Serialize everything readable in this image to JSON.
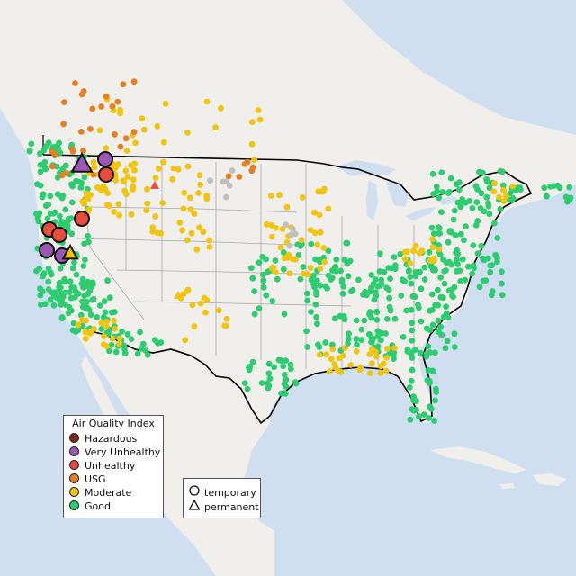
{
  "colors": {
    "water": "#cfdff0",
    "land": "#f0efec",
    "land_shade": "#e4e2dc",
    "border": "#000000",
    "state_border": "#a9a9a9",
    "hazardous": "#7e2a1b",
    "very_unhealthy": "#9b59b6",
    "unhealthy": "#e74c3c",
    "usg": "#e67e22",
    "moderate": "#f1c40f",
    "good": "#2ecc71",
    "unknown": "#bfbfbf"
  },
  "legend": {
    "title": "Air Quality Index",
    "items": [
      {
        "label": "Hazardous",
        "color": "#7e2a1b"
      },
      {
        "label": "Very Unhealthy",
        "color": "#9b59b6"
      },
      {
        "label": "Unhealthy",
        "color": "#e74c3c"
      },
      {
        "label": "USG",
        "color": "#e67e22"
      },
      {
        "label": "Moderate",
        "color": "#f1c40f"
      },
      {
        "label": "Good",
        "color": "#2ecc71"
      }
    ]
  },
  "type_legend": {
    "temporary": "temporary",
    "permanent": "permanent"
  }
}
